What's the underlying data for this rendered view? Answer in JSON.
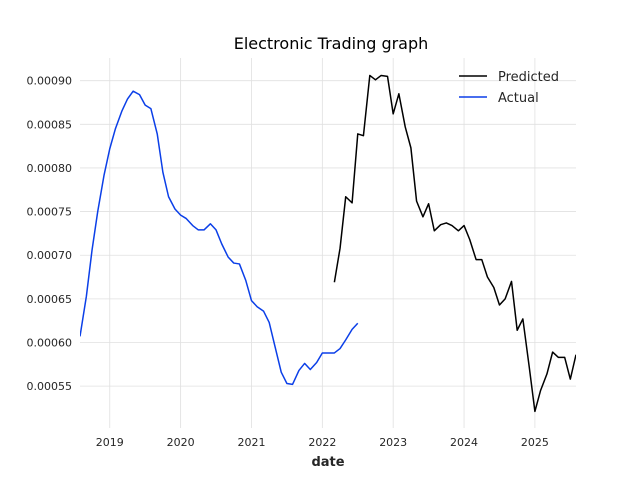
{
  "chart_data": {
    "type": "line",
    "title": "Electronic Trading graph",
    "xlabel": "date",
    "ylabel": "",
    "grid": true,
    "legend_position": "top-right",
    "x_ticks": [
      "2019",
      "2020",
      "2021",
      "2022",
      "2023",
      "2024",
      "2025"
    ],
    "y_ticks": [
      "0.00055",
      "0.00060",
      "0.00065",
      "0.00070",
      "0.00075",
      "0.00080",
      "0.00085",
      "0.00090"
    ],
    "xlim": [
      2018.58,
      2025.58
    ],
    "ylim": [
      0.000502,
      0.000926
    ],
    "series": [
      {
        "name": "Predicted",
        "color": "#000000",
        "points": [
          [
            2022.17,
            0.000669
          ],
          [
            2022.25,
            0.000708
          ],
          [
            2022.33,
            0.000767
          ],
          [
            2022.42,
            0.00076
          ],
          [
            2022.5,
            0.000839
          ],
          [
            2022.58,
            0.000837
          ],
          [
            2022.67,
            0.000906
          ],
          [
            2022.75,
            0.000901
          ],
          [
            2022.83,
            0.000906
          ],
          [
            2022.92,
            0.000905
          ],
          [
            2023.0,
            0.000862
          ],
          [
            2023.08,
            0.000885
          ],
          [
            2023.17,
            0.000847
          ],
          [
            2023.25,
            0.000823
          ],
          [
            2023.33,
            0.000762
          ],
          [
            2023.42,
            0.000744
          ],
          [
            2023.5,
            0.000759
          ],
          [
            2023.58,
            0.000728
          ],
          [
            2023.67,
            0.000735
          ],
          [
            2023.75,
            0.000737
          ],
          [
            2023.83,
            0.000734
          ],
          [
            2023.92,
            0.000728
          ],
          [
            2024.0,
            0.000734
          ],
          [
            2024.08,
            0.000718
          ],
          [
            2024.17,
            0.000695
          ],
          [
            2024.25,
            0.000695
          ],
          [
            2024.33,
            0.000675
          ],
          [
            2024.42,
            0.000663
          ],
          [
            2024.5,
            0.000643
          ],
          [
            2024.58,
            0.00065
          ],
          [
            2024.67,
            0.00067
          ],
          [
            2024.75,
            0.000614
          ],
          [
            2024.83,
            0.000627
          ],
          [
            2024.92,
            0.000572
          ],
          [
            2025.0,
            0.000521
          ],
          [
            2025.08,
            0.000545
          ],
          [
            2025.17,
            0.000564
          ],
          [
            2025.25,
            0.000589
          ],
          [
            2025.33,
            0.000583
          ],
          [
            2025.42,
            0.000583
          ],
          [
            2025.5,
            0.000558
          ],
          [
            2025.58,
            0.000586
          ]
        ]
      },
      {
        "name": "Actual",
        "color": "#0b3fe8",
        "points": [
          [
            2018.58,
            0.000607
          ],
          [
            2018.67,
            0.000653
          ],
          [
            2018.75,
            0.000706
          ],
          [
            2018.83,
            0.00075
          ],
          [
            2018.92,
            0.000792
          ],
          [
            2019.0,
            0.000822
          ],
          [
            2019.08,
            0.000845
          ],
          [
            2019.17,
            0.000865
          ],
          [
            2019.25,
            0.000879
          ],
          [
            2019.33,
            0.000888
          ],
          [
            2019.42,
            0.000884
          ],
          [
            2019.5,
            0.000872
          ],
          [
            2019.58,
            0.000868
          ],
          [
            2019.67,
            0.000839
          ],
          [
            2019.75,
            0.000795
          ],
          [
            2019.83,
            0.000767
          ],
          [
            2019.92,
            0.000753
          ],
          [
            2020.0,
            0.000746
          ],
          [
            2020.08,
            0.000742
          ],
          [
            2020.17,
            0.000734
          ],
          [
            2020.25,
            0.000729
          ],
          [
            2020.33,
            0.000729
          ],
          [
            2020.42,
            0.000736
          ],
          [
            2020.5,
            0.000729
          ],
          [
            2020.58,
            0.000713
          ],
          [
            2020.67,
            0.000698
          ],
          [
            2020.75,
            0.000691
          ],
          [
            2020.83,
            0.00069
          ],
          [
            2020.92,
            0.000671
          ],
          [
            2021.0,
            0.000648
          ],
          [
            2021.08,
            0.000641
          ],
          [
            2021.17,
            0.000636
          ],
          [
            2021.25,
            0.000623
          ],
          [
            2021.33,
            0.000596
          ],
          [
            2021.42,
            0.000566
          ],
          [
            2021.5,
            0.000553
          ],
          [
            2021.58,
            0.000552
          ],
          [
            2021.67,
            0.000568
          ],
          [
            2021.75,
            0.000576
          ],
          [
            2021.83,
            0.000569
          ],
          [
            2021.92,
            0.000577
          ],
          [
            2022.0,
            0.000588
          ],
          [
            2022.08,
            0.000588
          ],
          [
            2022.17,
            0.000588
          ],
          [
            2022.25,
            0.000593
          ],
          [
            2022.33,
            0.000603
          ],
          [
            2022.42,
            0.000615
          ],
          [
            2022.5,
            0.000622
          ]
        ]
      }
    ]
  }
}
